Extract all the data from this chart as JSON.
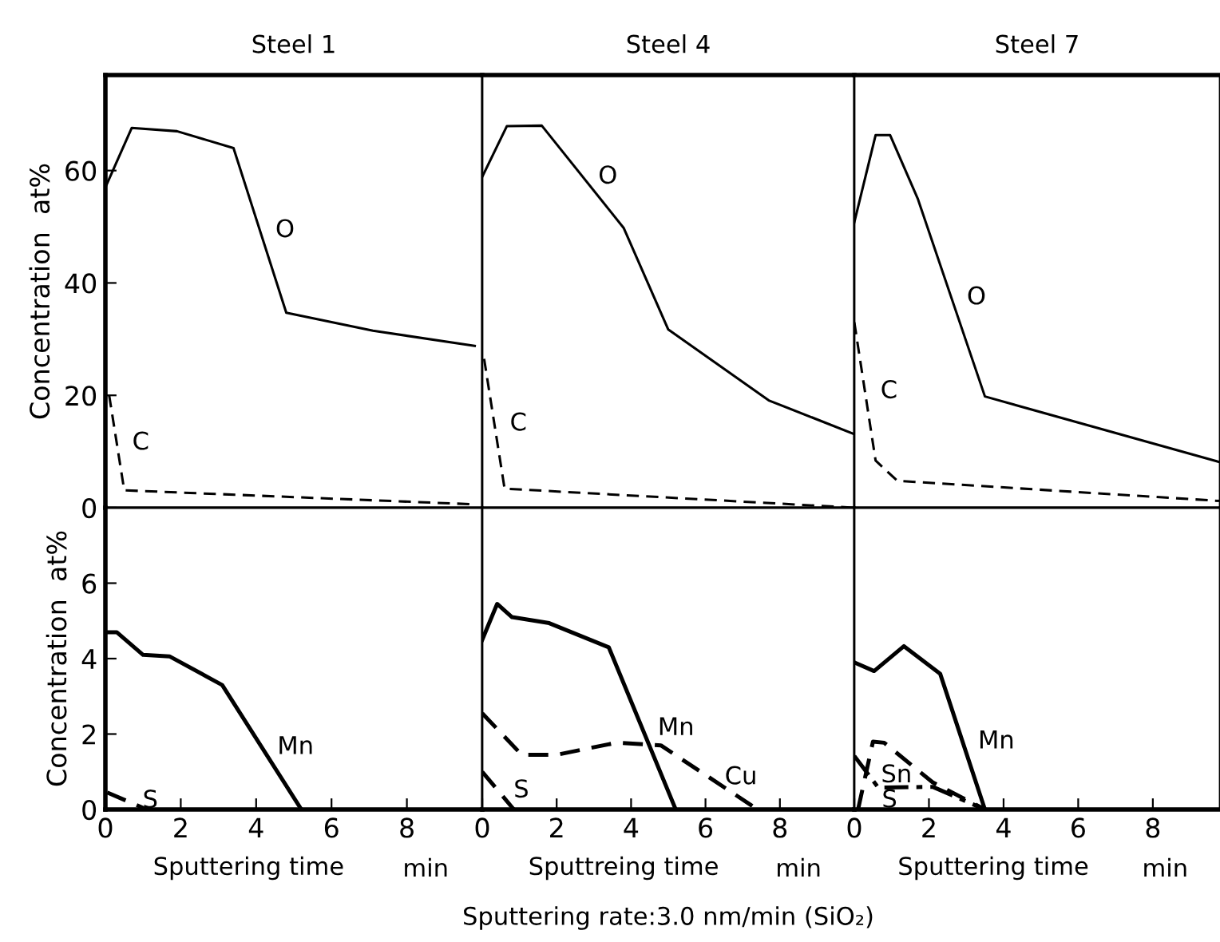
{
  "chart_data": [
    {
      "type": "line",
      "title": "Steel 1",
      "ylabel": "Concentration  at%",
      "xlim": [
        0,
        10
      ],
      "ylim": [
        0,
        77
      ],
      "xticks": [
        0,
        2,
        4,
        6,
        8
      ],
      "yticks": [
        0,
        20,
        40,
        60
      ],
      "tick_labels": "y",
      "grid": false,
      "legend": false,
      "marker": "none",
      "series": [
        {
          "name": "O",
          "color": "#000000",
          "line_style": "solid",
          "x": [
            0,
            0.7,
            1.9,
            3.4,
            4.8,
            7.1,
            9.8
          ],
          "values": [
            57,
            67.6,
            67,
            64,
            34.7,
            31.5,
            28.8
          ]
        },
        {
          "name": "C",
          "color": "#000000",
          "line_style": "dashed",
          "x": [
            0.1,
            0.5,
            9.8
          ],
          "values": [
            20,
            3.1,
            0.6
          ]
        }
      ]
    },
    {
      "type": "line",
      "title": "Steel 4",
      "xlim": [
        0,
        10
      ],
      "ylim": [
        0,
        77
      ],
      "xticks": [
        0,
        2,
        4,
        6,
        8
      ],
      "yticks": [
        0,
        20,
        40,
        60
      ],
      "tick_labels": false,
      "grid": false,
      "legend": false,
      "marker": "none",
      "series": [
        {
          "name": "O",
          "color": "#000000",
          "line_style": "solid",
          "x": [
            0,
            0.66,
            1.6,
            3.8,
            5.0,
            7.7,
            10
          ],
          "values": [
            58.9,
            67.9,
            68,
            49.8,
            31.7,
            19.1,
            13.1
          ]
        },
        {
          "name": "C",
          "color": "#000000",
          "line_style": "dashed",
          "x": [
            0.05,
            0.6,
            10
          ],
          "values": [
            26.5,
            3.4,
            0
          ]
        }
      ]
    },
    {
      "type": "line",
      "title": "Steel 7",
      "xlim": [
        0,
        9.8
      ],
      "ylim": [
        0,
        77
      ],
      "xticks": [
        0,
        2,
        4,
        6,
        8
      ],
      "yticks": [
        0,
        20,
        40,
        60
      ],
      "tick_labels": false,
      "grid": false,
      "legend": false,
      "marker": "none",
      "series": [
        {
          "name": "O",
          "color": "#000000",
          "line_style": "solid",
          "x": [
            0,
            0.57,
            0.96,
            1.7,
            3.5,
            9.8
          ],
          "values": [
            50.8,
            66.3,
            66.3,
            55,
            19.8,
            8.1
          ]
        },
        {
          "name": "C",
          "color": "#000000",
          "line_style": "dashed",
          "x": [
            0,
            0.57,
            1.15,
            9.8
          ],
          "values": [
            33,
            8.4,
            4.8,
            1.2
          ]
        }
      ]
    },
    {
      "type": "line",
      "ylabel": "Concentration  at%",
      "xlabel": "Sputtering time",
      "annotations": [
        "min"
      ],
      "xlim": [
        0,
        10
      ],
      "ylim": [
        0,
        8
      ],
      "xticks": [
        0,
        2,
        4,
        6,
        8
      ],
      "yticks": [
        0,
        2,
        4,
        6
      ],
      "grid": false,
      "legend": false,
      "marker": "none",
      "series": [
        {
          "name": "Mn",
          "color": "#000000",
          "line_style": "solid",
          "x": [
            0,
            0.3,
            1.0,
            1.7,
            3.1,
            5.2
          ],
          "values": [
            4.7,
            4.7,
            4.1,
            4.06,
            3.3,
            0
          ]
        },
        {
          "name": "S",
          "color": "#000000",
          "line_style": "dashed",
          "x": [
            0.05,
            1.1
          ],
          "values": [
            0.45,
            0
          ]
        }
      ]
    },
    {
      "type": "line",
      "xlabel": "Sputtreing time",
      "annotations": [
        "min",
        "Sputtering rate:3.0 nm/min (SiO₂)"
      ],
      "xlim": [
        0,
        10
      ],
      "ylim": [
        0,
        8
      ],
      "xticks": [
        0,
        2,
        4,
        6,
        8
      ],
      "yticks": [
        0,
        2,
        4,
        6
      ],
      "tick_labels": "x",
      "grid": false,
      "legend": false,
      "marker": "none",
      "series": [
        {
          "name": "Mn",
          "color": "#000000",
          "line_style": "solid",
          "x": [
            0,
            0.4,
            0.8,
            1.8,
            3.4,
            5.2
          ],
          "values": [
            4.5,
            5.45,
            5.1,
            4.94,
            4.3,
            0
          ]
        },
        {
          "name": "Cu",
          "color": "#000000",
          "line_style": "dashed",
          "x": [
            0,
            1.06,
            2.0,
            3.6,
            4.8,
            7.4
          ],
          "values": [
            2.55,
            1.45,
            1.45,
            1.77,
            1.7,
            0
          ]
        },
        {
          "name": "S",
          "color": "#000000",
          "line_style": "dashed",
          "x": [
            0,
            0.85
          ],
          "values": [
            1.0,
            0
          ]
        }
      ]
    },
    {
      "type": "line",
      "xlabel": "Sputtering time",
      "annotations": [
        "min"
      ],
      "xlim": [
        0,
        9.8
      ],
      "ylim": [
        0,
        8
      ],
      "xticks": [
        0,
        2,
        4,
        6,
        8
      ],
      "yticks": [
        0,
        2,
        4,
        6
      ],
      "tick_labels": "x",
      "grid": false,
      "legend": false,
      "marker": "none",
      "series": [
        {
          "name": "Mn",
          "color": "#000000",
          "line_style": "solid",
          "x": [
            0,
            0.53,
            1.33,
            2.3,
            3.5
          ],
          "values": [
            3.9,
            3.67,
            4.33,
            3.6,
            0
          ]
        },
        {
          "name": "Sn",
          "color": "#000000",
          "line_style": "dashed",
          "x": [
            0.1,
            0.5,
            0.8,
            2.1,
            3.5
          ],
          "values": [
            0,
            1.8,
            1.77,
            0.72,
            0
          ]
        },
        {
          "name": "S",
          "color": "#000000",
          "line_style": "dotted",
          "x": [
            0,
            0.64,
            2.1,
            3.5
          ],
          "values": [
            1.42,
            0.58,
            0.6,
            0
          ]
        }
      ]
    }
  ]
}
